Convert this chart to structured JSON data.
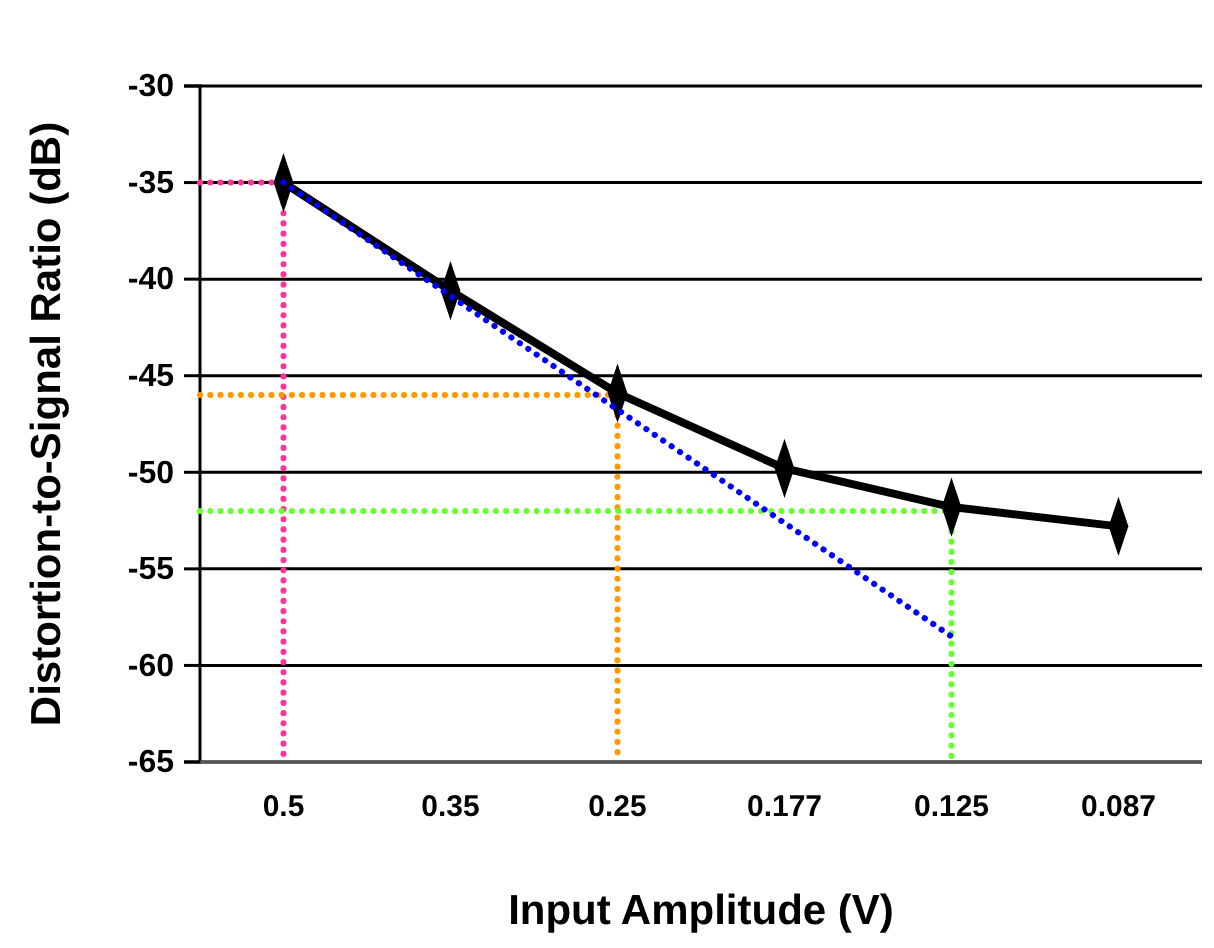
{
  "chart_data": {
    "type": "line",
    "xlabel": "Input Amplitude (V)",
    "ylabel": "Distortion-to-Signal Ratio (dB)",
    "categories": [
      "0.5",
      "0.35",
      "0.25",
      "0.177",
      "0.125",
      "0.087"
    ],
    "ylim": [
      -65,
      -30
    ],
    "yticks": [
      -65,
      -60,
      -55,
      -50,
      -45,
      -40,
      -35,
      -30
    ],
    "grid": "y",
    "ref_lines": [
      {
        "axis": "y",
        "value": -35,
        "color": "#ff3399",
        "line_style": "dotted"
      },
      {
        "axis": "x",
        "value": "0.5",
        "color": "#ff3399",
        "line_style": "dotted"
      },
      {
        "axis": "y",
        "value": -46,
        "color": "#ff9900",
        "line_style": "dotted"
      },
      {
        "axis": "x",
        "value": "0.25",
        "color": "#ff9900",
        "line_style": "dotted"
      },
      {
        "axis": "y",
        "value": -52,
        "color": "#66ff33",
        "line_style": "dotted"
      },
      {
        "axis": "x",
        "value": "0.125",
        "color": "#66ff33",
        "line_style": "dotted"
      }
    ],
    "series": [
      {
        "color": "#000000",
        "values": [
          -35,
          -40.6,
          -45.9,
          -49.8,
          -51.8,
          -52.8
        ],
        "line_style": "solid",
        "marker": "diamond"
      },
      {
        "color": "#0000ff",
        "x": [
          "0.5",
          "0.125"
        ],
        "values": [
          -35,
          -58.5
        ],
        "line_style": "dotted",
        "marker": "none"
      }
    ]
  }
}
